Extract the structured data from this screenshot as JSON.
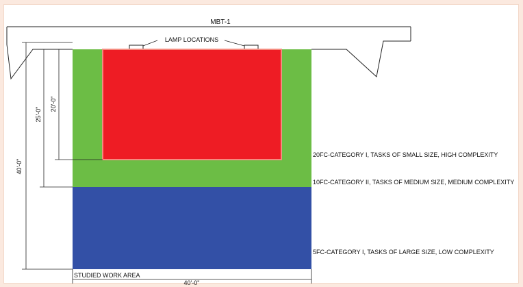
{
  "title": "MBT-1",
  "lamp_label": "LAMP LOCATIONS",
  "dimensions": {
    "d40_vertical": "40'-0\"",
    "d25_vertical": "25'-0\"",
    "d20_vertical": "20'-0\"",
    "d40_horizontal": "40'-0\""
  },
  "zones": [
    {
      "label": "20FC-CATEGORY I, TASKS OF SMALL SIZE, HIGH COMPLEXITY",
      "color": "#ee1c24"
    },
    {
      "label": "10FC-CATEGORY II, TASKS OF MEDIUM SIZE, MEDIUM COMPLEXITY",
      "color": "#6cbd45"
    },
    {
      "label": "5FC-CATEGORY I, TASKS OF LARGE SIZE, LOW COMPLEXITY",
      "color": "#3350a6"
    }
  ],
  "work_area_label": "STUDIED WORK AREA"
}
